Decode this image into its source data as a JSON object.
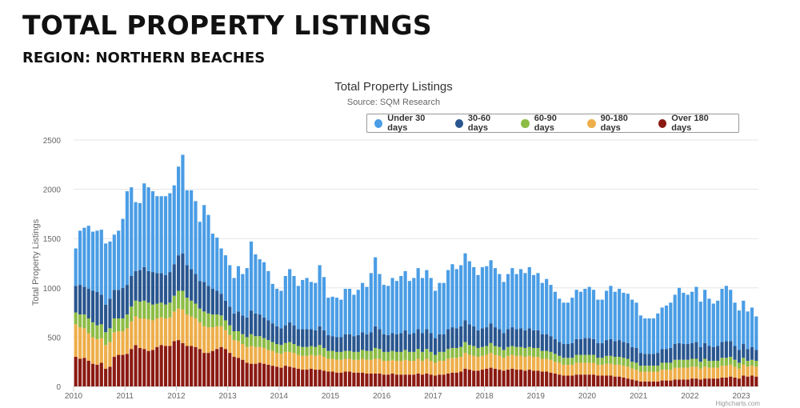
{
  "page": {
    "heading": "TOTAL PROPERTY LISTINGS",
    "subheading": "REGION: NORTHERN BEACHES"
  },
  "chart_data": {
    "type": "bar",
    "stacked": true,
    "title": "Total Property Listings",
    "subtitle": "Source: SQM Research",
    "ylabel": "Total Property Listings",
    "xlabel": "",
    "ylim": [
      0,
      2500
    ],
    "yticks": [
      0,
      500,
      1000,
      1500,
      2000,
      2500
    ],
    "xticks": [
      "2010",
      "2011",
      "2012",
      "2013",
      "2014",
      "2015",
      "2016",
      "2017",
      "2018",
      "2019",
      "2020",
      "2021",
      "2022",
      "2023"
    ],
    "x_start": "2010-01",
    "x_end": "2023-04",
    "credits": "Highcharts.com",
    "legend_position": "top-right",
    "grid": true,
    "colors": {
      "Under 30 days": "#4a9de5",
      "30-60 days": "#29568f",
      "60-90 days": "#8cbc45",
      "90-180 days": "#eeae4a",
      "Over 180 days": "#8b1a12"
    },
    "series": [
      {
        "name": "Under 30 days",
        "values": [
          380,
          550,
          600,
          640,
          600,
          620,
          660,
          620,
          580,
          560,
          600,
          700,
          950,
          900,
          700,
          680,
          850,
          850,
          820,
          780,
          780,
          800,
          800,
          800,
          900,
          1000,
          760,
          800,
          740,
          600,
          780,
          720,
          560,
          540,
          460,
          460,
          420,
          360,
          460,
          420,
          500,
          700,
          600,
          560,
          560,
          500,
          400,
          380,
          380,
          500,
          540,
          500,
          440,
          500,
          520,
          480,
          480,
          620,
          540,
          380,
          400,
          400,
          380,
          460,
          460,
          420,
          460,
          500,
          480,
          600,
          700,
          560,
          500,
          500,
          560,
          540,
          580,
          600,
          540,
          560,
          620,
          560,
          600,
          560,
          480,
          520,
          520,
          600,
          640,
          600,
          620,
          680,
          640,
          600,
          560,
          620,
          620,
          640,
          600,
          560,
          520,
          560,
          600,
          560,
          600,
          580,
          620,
          560,
          580,
          520,
          560,
          520,
          480,
          440,
          420,
          420,
          460,
          500,
          480,
          500,
          520,
          500,
          440,
          440,
          500,
          540,
          500,
          520,
          500,
          500,
          480,
          460,
          380,
          360,
          360,
          360,
          400,
          420,
          440,
          460,
          500,
          560,
          520,
          500,
          520,
          560,
          460,
          540,
          480,
          440,
          460,
          540,
          560,
          520,
          440,
          400,
          440,
          380,
          400,
          340
        ]
      },
      {
        "name": "30-60 days",
        "values": [
          270,
          300,
          280,
          300,
          320,
          340,
          300,
          280,
          300,
          290,
          290,
          310,
          300,
          310,
          300,
          320,
          340,
          320,
          330,
          310,
          300,
          300,
          310,
          320,
          360,
          380,
          330,
          320,
          300,
          280,
          300,
          280,
          260,
          240,
          220,
          200,
          190,
          180,
          200,
          190,
          200,
          240,
          230,
          220,
          210,
          200,
          190,
          180,
          170,
          180,
          200,
          190,
          170,
          180,
          180,
          170,
          170,
          190,
          180,
          160,
          150,
          150,
          150,
          170,
          170,
          160,
          170,
          180,
          170,
          190,
          220,
          200,
          180,
          170,
          180,
          180,
          190,
          200,
          180,
          190,
          200,
          190,
          200,
          190,
          170,
          180,
          180,
          200,
          210,
          200,
          210,
          220,
          210,
          200,
          180,
          190,
          190,
          200,
          190,
          180,
          170,
          180,
          190,
          180,
          190,
          180,
          190,
          180,
          180,
          170,
          170,
          160,
          150,
          140,
          140,
          140,
          150,
          160,
          160,
          170,
          170,
          160,
          150,
          150,
          160,
          170,
          160,
          170,
          160,
          160,
          150,
          150,
          130,
          120,
          120,
          120,
          130,
          140,
          140,
          150,
          160,
          170,
          160,
          160,
          160,
          170,
          150,
          160,
          150,
          140,
          150,
          160,
          170,
          160,
          140,
          130,
          140,
          120,
          130,
          110
        ]
      },
      {
        "name": "60-90 days",
        "values": [
          120,
          130,
          140,
          150,
          150,
          140,
          140,
          130,
          140,
          140,
          130,
          130,
          140,
          150,
          160,
          170,
          180,
          170,
          160,
          150,
          150,
          140,
          150,
          160,
          180,
          190,
          170,
          160,
          150,
          140,
          150,
          140,
          130,
          120,
          110,
          100,
          100,
          90,
          100,
          100,
          100,
          120,
          110,
          110,
          100,
          100,
          90,
          90,
          90,
          90,
          100,
          90,
          90,
          90,
          90,
          90,
          90,
          100,
          90,
          80,
          80,
          80,
          80,
          80,
          80,
          80,
          80,
          90,
          90,
          90,
          110,
          100,
          90,
          90,
          90,
          90,
          90,
          100,
          90,
          90,
          100,
          90,
          100,
          90,
          80,
          90,
          90,
          100,
          100,
          100,
          100,
          110,
          100,
          100,
          90,
          90,
          90,
          100,
          90,
          90,
          80,
          90,
          90,
          90,
          90,
          90,
          90,
          90,
          90,
          80,
          80,
          80,
          80,
          70,
          70,
          70,
          70,
          80,
          80,
          80,
          80,
          80,
          70,
          70,
          80,
          80,
          80,
          80,
          80,
          80,
          70,
          70,
          60,
          60,
          60,
          60,
          60,
          70,
          70,
          70,
          80,
          80,
          80,
          80,
          80,
          80,
          70,
          80,
          70,
          70,
          70,
          80,
          80,
          80,
          70,
          60,
          70,
          60,
          60,
          60
        ]
      },
      {
        "name": "90-180 days",
        "values": [
          330,
          320,
          300,
          280,
          270,
          260,
          250,
          240,
          250,
          250,
          240,
          240,
          260,
          280,
          290,
          300,
          310,
          320,
          300,
          290,
          280,
          280,
          290,
          300,
          320,
          340,
          320,
          300,
          290,
          270,
          270,
          260,
          240,
          230,
          210,
          190,
          180,
          170,
          170,
          160,
          160,
          180,
          170,
          160,
          160,
          150,
          150,
          140,
          140,
          140,
          150,
          150,
          140,
          140,
          140,
          140,
          140,
          150,
          140,
          130,
          130,
          130,
          130,
          130,
          130,
          130,
          130,
          140,
          140,
          140,
          150,
          150,
          140,
          140,
          140,
          140,
          140,
          150,
          140,
          140,
          150,
          140,
          150,
          140,
          130,
          140,
          140,
          150,
          150,
          150,
          150,
          160,
          150,
          150,
          140,
          140,
          140,
          150,
          140,
          140,
          130,
          140,
          140,
          140,
          140,
          140,
          140,
          140,
          140,
          130,
          130,
          130,
          120,
          120,
          110,
          110,
          110,
          120,
          120,
          120,
          120,
          120,
          110,
          110,
          120,
          120,
          120,
          120,
          120,
          120,
          110,
          110,
          100,
          100,
          100,
          100,
          100,
          110,
          110,
          110,
          120,
          120,
          120,
          120,
          120,
          120,
          110,
          120,
          110,
          110,
          110,
          120,
          120,
          120,
          110,
          100,
          110,
          100,
          100,
          100
        ]
      },
      {
        "name": "Over 180 days",
        "values": [
          300,
          280,
          290,
          260,
          230,
          220,
          240,
          180,
          200,
          300,
          320,
          320,
          330,
          380,
          420,
          390,
          380,
          360,
          370,
          400,
          420,
          410,
          410,
          460,
          470,
          440,
          410,
          410,
          400,
          380,
          340,
          340,
          360,
          380,
          400,
          380,
          340,
          300,
          290,
          270,
          240,
          230,
          230,
          240,
          230,
          220,
          210,
          200,
          190,
          210,
          200,
          190,
          180,
          170,
          170,
          180,
          170,
          170,
          160,
          150,
          150,
          140,
          140,
          150,
          150,
          140,
          140,
          140,
          130,
          130,
          130,
          130,
          120,
          120,
          130,
          120,
          120,
          120,
          120,
          120,
          130,
          120,
          130,
          120,
          110,
          120,
          120,
          130,
          140,
          140,
          150,
          180,
          170,
          160,
          160,
          170,
          180,
          190,
          180,
          170,
          160,
          170,
          180,
          170,
          170,
          160,
          170,
          160,
          160,
          150,
          150,
          140,
          130,
          120,
          110,
          110,
          110,
          120,
          120,
          120,
          120,
          120,
          110,
          110,
          110,
          110,
          100,
          100,
          90,
          80,
          70,
          60,
          50,
          50,
          50,
          50,
          50,
          60,
          60,
          60,
          70,
          70,
          70,
          70,
          80,
          80,
          70,
          80,
          80,
          80,
          80,
          90,
          90,
          100,
          90,
          80,
          110,
          100,
          110,
          100
        ]
      }
    ]
  }
}
